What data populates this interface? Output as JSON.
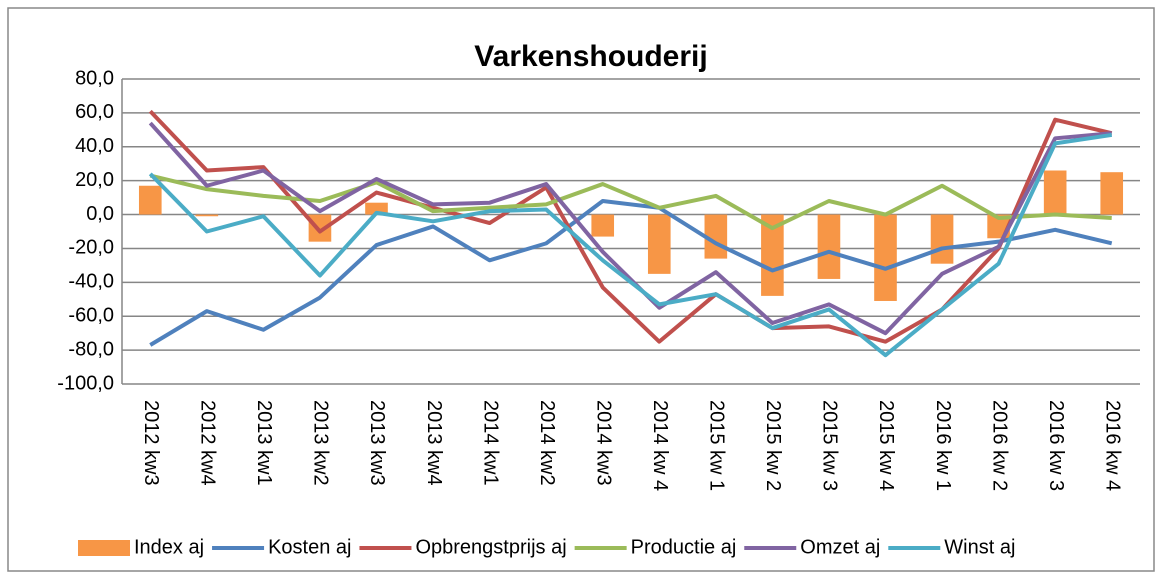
{
  "chart_data": {
    "type": "line",
    "title": "Varkenshouderij",
    "categories": [
      "2012 kw3",
      "2012 kw4",
      "2013 kw1",
      "2013 kw2",
      "2013 kw3",
      "2013 kw4",
      "2014 kw1",
      "2014 kw2",
      "2014 kw3",
      "2014 kw 4",
      "2015 kw 1",
      "2015 kw 2",
      "2015 kw 3",
      "2015 kw 4",
      "2016 kw 1",
      "2016 kw 2",
      "2016 kw 3",
      "2016 kw 4"
    ],
    "series": [
      {
        "name": "Index aj",
        "type": "bar",
        "color": "#f79646",
        "values": [
          17,
          -1,
          0,
          -16,
          7,
          0,
          0,
          0,
          -13,
          -35,
          -26,
          -48,
          -38,
          -51,
          -29,
          -14,
          26,
          25
        ]
      },
      {
        "name": "Kosten aj",
        "type": "line",
        "color": "#4f81bd",
        "values": [
          -77,
          -57,
          -68,
          -49,
          -18,
          -7,
          -27,
          -17,
          8,
          4,
          -17,
          -33,
          -22,
          -32,
          -20,
          -16,
          -9,
          -17
        ]
      },
      {
        "name": "Opbrengstprijs aj",
        "type": "line",
        "color": "#c0504d",
        "values": [
          61,
          26,
          28,
          -10,
          13,
          4,
          -5,
          16,
          -43,
          -75,
          -47,
          -67,
          -66,
          -75,
          -56,
          -20,
          56,
          48
        ]
      },
      {
        "name": "Productie aj",
        "type": "line",
        "color": "#9bbb59",
        "values": [
          23,
          15,
          11,
          8,
          19,
          2,
          4,
          6,
          18,
          4,
          11,
          -8,
          8,
          0,
          17,
          -2,
          0,
          -2
        ]
      },
      {
        "name": "Omzet aj",
        "type": "line",
        "color": "#8064a2",
        "values": [
          54,
          17,
          26,
          2,
          21,
          6,
          7,
          18,
          -22,
          -55,
          -34,
          -64,
          -53,
          -70,
          -35,
          -19,
          45,
          48
        ]
      },
      {
        "name": "Winst aj",
        "type": "line",
        "color": "#4bacc6",
        "values": [
          24,
          -10,
          -1,
          -36,
          1,
          -4,
          2,
          3,
          -27,
          -53,
          -47,
          -67,
          -56,
          -83,
          -56,
          -29,
          42,
          47
        ]
      }
    ],
    "ylim": [
      -100,
      80
    ],
    "yticks": [
      {
        "value": -100,
        "label": "-100,0"
      },
      {
        "value": -80,
        "label": "-80,0"
      },
      {
        "value": -60,
        "label": "-60,0"
      },
      {
        "value": -40,
        "label": "-40,0"
      },
      {
        "value": -20,
        "label": "-20,0"
      },
      {
        "value": 0,
        "label": "0,0"
      },
      {
        "value": 20,
        "label": "20,0"
      },
      {
        "value": 40,
        "label": "40,0"
      },
      {
        "value": 60,
        "label": "60,0"
      },
      {
        "value": 80,
        "label": "80,0"
      }
    ],
    "grid": true,
    "legend": "bottom"
  }
}
